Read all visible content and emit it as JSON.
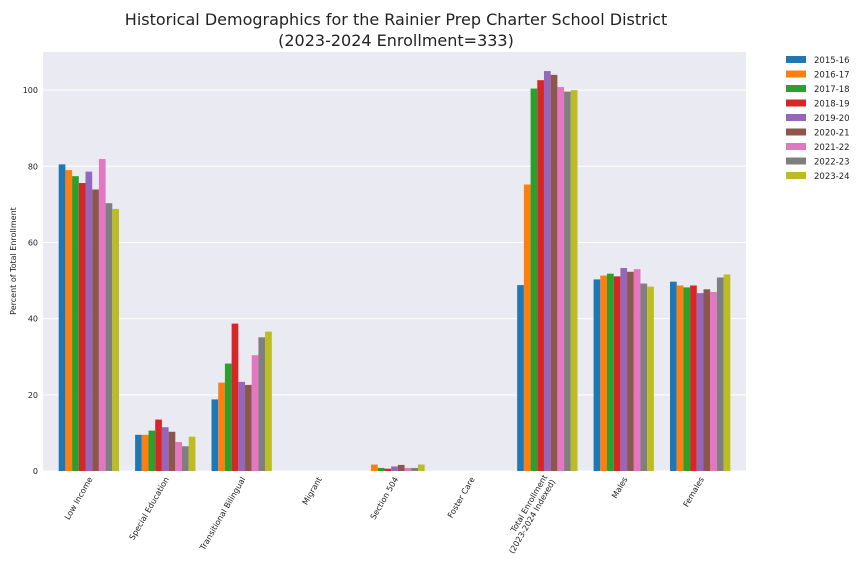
{
  "colors": {
    "background": "#eaeaf2",
    "grid": "#ffffff",
    "series": [
      "#1f77b4",
      "#ff7f0e",
      "#2ca02c",
      "#d62728",
      "#9467bd",
      "#8c564b",
      "#e377c2",
      "#7f7f7f",
      "#bcbd22"
    ]
  },
  "chart_data": {
    "type": "bar",
    "title": "Historical Demographics for the Rainier Prep Charter School District",
    "subtitle": "(2023-2024 Enrollment=333)",
    "xlabel": "",
    "ylabel": "Percent of Total Enrollment",
    "ylim": [
      0,
      110
    ],
    "yticks": [
      0,
      20,
      40,
      60,
      80,
      100
    ],
    "grid": true,
    "legend_position": "outside-top-right",
    "categories": [
      "Low Income",
      "Special Education",
      "Transitional Bilingual",
      "Migrant",
      "Section 504",
      "Foster Care",
      "Total Enrollment\n(2023-2024 Indexed)",
      "Males",
      "Females"
    ],
    "series": [
      {
        "name": "2015-16",
        "values": [
          80.5,
          9.5,
          18.8,
          0,
          0,
          0,
          48.8,
          50.3,
          49.7
        ]
      },
      {
        "name": "2016-17",
        "values": [
          79.0,
          9.5,
          23.2,
          0,
          1.7,
          0,
          75.2,
          51.3,
          48.7
        ]
      },
      {
        "name": "2017-18",
        "values": [
          77.4,
          10.6,
          28.2,
          0,
          0.8,
          0,
          100.4,
          51.8,
          48.2
        ]
      },
      {
        "name": "2018-19",
        "values": [
          75.6,
          13.5,
          38.7,
          0,
          0.6,
          0,
          102.6,
          51.1,
          48.7
        ]
      },
      {
        "name": "2019-20",
        "values": [
          78.6,
          11.5,
          23.4,
          0,
          1.2,
          0,
          105.0,
          53.3,
          46.7
        ]
      },
      {
        "name": "2020-21",
        "values": [
          73.9,
          10.3,
          22.6,
          0,
          1.6,
          0,
          104.0,
          52.3,
          47.7
        ]
      },
      {
        "name": "2021-22",
        "values": [
          81.9,
          7.6,
          30.4,
          0,
          0.8,
          0,
          100.8,
          53.0,
          47.0
        ]
      },
      {
        "name": "2022-23",
        "values": [
          70.3,
          6.5,
          35.1,
          0,
          0.8,
          0,
          99.6,
          49.2,
          50.8
        ]
      },
      {
        "name": "2023-24",
        "values": [
          68.8,
          9.0,
          36.6,
          0,
          1.7,
          0,
          100.0,
          48.4,
          51.6
        ]
      }
    ]
  }
}
